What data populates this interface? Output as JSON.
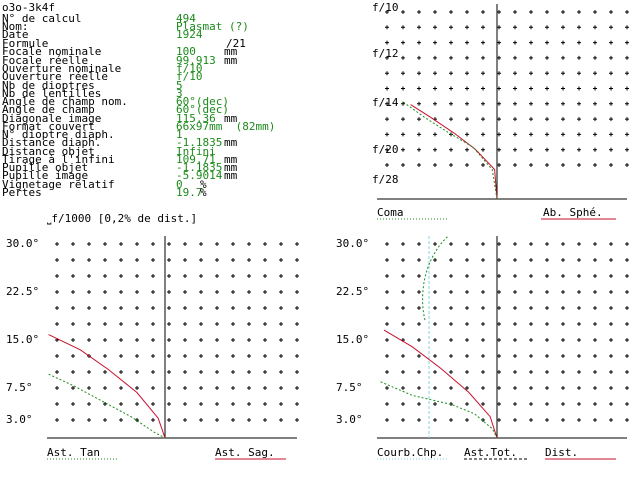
{
  "header": {
    "title": "o3o-3k4f"
  },
  "specs": [
    {
      "label": "N° de calcul",
      "value": "494",
      "unit": ""
    },
    {
      "label": "Nom:",
      "value": "Plasmat (?)",
      "unit": ""
    },
    {
      "label": "Date",
      "value": "1924",
      "unit": ""
    },
    {
      "label": "Formule",
      "value": "",
      "unit": "/21"
    },
    {
      "label": "Focale nominale",
      "value": "100",
      "unit": "mm"
    },
    {
      "label": "Focale réelle",
      "value": "99.913",
      "unit": "mm"
    },
    {
      "label": "Ouverture nominale",
      "value": "f/10",
      "unit": ""
    },
    {
      "label": "Ouverture réelle",
      "value": "f/10",
      "unit": ""
    },
    {
      "label": "Nb de dioptres",
      "value": "5",
      "unit": ""
    },
    {
      "label": "Nb de lentilles",
      "value": "3",
      "unit": ""
    },
    {
      "label": "Angle de champ nom.",
      "value": "60°(dec)",
      "unit": ""
    },
    {
      "label": "Angle de champ",
      "value": "60°(dec)",
      "unit": ""
    },
    {
      "label": "Diagonale image",
      "value": "115.36",
      "unit": "mm"
    },
    {
      "label": "Format couvert",
      "value": "66x97mm  (82mm)",
      "unit": ""
    },
    {
      "label": "N° dioptre diaph.",
      "value": "1",
      "unit": ""
    },
    {
      "label": "Distance diaph.",
      "value": "-1.1835",
      "unit": "mm"
    },
    {
      "label": "Distance objet",
      "value": "Infini",
      "unit": ""
    },
    {
      "label": "Tirage à l'infini",
      "value": "109.71",
      "unit": "mm"
    },
    {
      "label": "Pupille objet",
      "value": "-1.1835",
      "unit": "mm"
    },
    {
      "label": "Pupille image",
      "value": "-5.9014",
      "unit": "mm"
    },
    {
      "label": "Vignetage relatif",
      "value": "0",
      "unit": "%"
    },
    {
      "label": "Pertes",
      "value": "19.7",
      "unit": "%"
    }
  ],
  "scale_note": "f/1000 [0,2% de dist.]",
  "colors": {
    "green": "#1c8a1c",
    "red": "#c8102e",
    "cyan": "#7fd4e0",
    "text": "#000000"
  },
  "chart_data": [
    {
      "type": "line",
      "ylabels": [
        "f/10",
        "f/12",
        "f/14",
        "f/20",
        "f/28"
      ],
      "legend": [
        "Coma",
        "Ab. Sphé."
      ],
      "series": [
        {
          "name": "Coma",
          "points": [
            [
              -7.8,
              0.82
            ],
            [
              -6.0,
              0.69
            ],
            [
              -4.0,
              0.56
            ],
            [
              -2.0,
              0.44
            ],
            [
              -0.4,
              0.25
            ],
            [
              0,
              0
            ]
          ]
        },
        {
          "name": "Ab. Sphé.",
          "points": [
            [
              -7.2,
              0.8
            ],
            [
              -5.5,
              0.69
            ],
            [
              -3.6,
              0.56
            ],
            [
              -1.8,
              0.42
            ],
            [
              -0.2,
              0.25
            ],
            [
              0,
              0
            ]
          ]
        }
      ]
    },
    {
      "type": "line",
      "ylabels": [
        "30.0°",
        "22.5°",
        "15.0°",
        "7.5°",
        "3.0°"
      ],
      "legend": [
        "Ast. Tan",
        "Ast. Sag."
      ],
      "series": [
        {
          "name": "Ast. Tan",
          "points": [
            [
              -10.3,
              0.42
            ],
            [
              -8.0,
              0.34
            ],
            [
              -5.5,
              0.24
            ],
            [
              -3.0,
              0.14
            ],
            [
              -1.0,
              0.04
            ],
            [
              0,
              0
            ]
          ]
        },
        {
          "name": "Ast. Sag.",
          "points": [
            [
              -10.3,
              0.68
            ],
            [
              -7.5,
              0.58
            ],
            [
              -5.0,
              0.45
            ],
            [
              -2.5,
              0.3
            ],
            [
              -0.6,
              0.13
            ],
            [
              0,
              0
            ]
          ]
        }
      ]
    },
    {
      "type": "line",
      "ylabels": [
        "30.0°",
        "22.5°",
        "15.0°",
        "7.5°",
        "3.0°"
      ],
      "legend": [
        "Courb.Chp.",
        "Ast.Tot.",
        "Dist."
      ],
      "series": [
        {
          "name": "Courb.Chp.",
          "points": [
            [
              -3.0,
              0.0
            ],
            [
              -3.2,
              0.2
            ],
            [
              -3.4,
              0.4
            ],
            [
              -3.6,
              0.6
            ],
            [
              -3.6,
              0.8
            ],
            [
              -3.6,
              1.0
            ]
          ]
        },
        {
          "name": "Ast.Tot.",
          "points": [
            [
              -10.0,
              0.71
            ],
            [
              -7.5,
              0.6
            ],
            [
              -5.0,
              0.46
            ],
            [
              -2.5,
              0.3
            ],
            [
              -0.6,
              0.14
            ],
            [
              0,
              0
            ]
          ]
        },
        {
          "name": "Dist.",
          "points": [
            [
              -10.3,
              0.37
            ],
            [
              -7.5,
              0.28
            ],
            [
              -4.0,
              0.22
            ],
            [
              -2.0,
              0.16
            ],
            [
              -0.4,
              0.06
            ],
            [
              0,
              0
            ]
          ]
        }
      ]
    }
  ]
}
